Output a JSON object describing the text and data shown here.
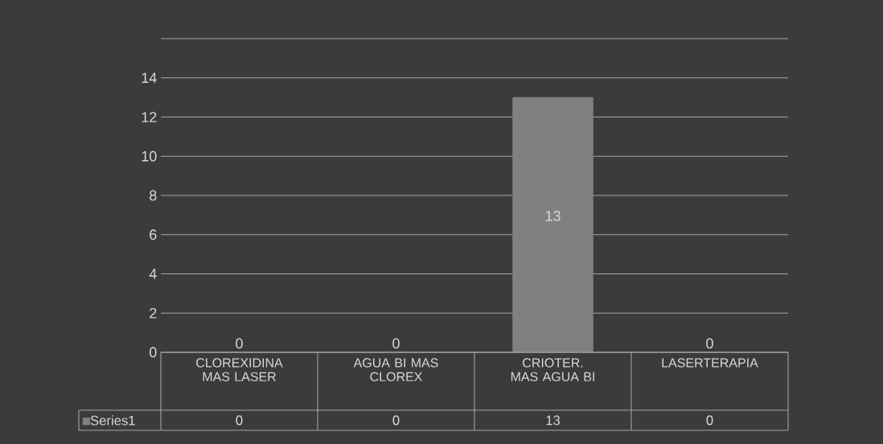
{
  "chart_data": {
    "type": "bar",
    "categories": [
      "CLOREXIDINA MAS LASER",
      "AGUA BI MAS CLOREX",
      "CRIOTER. MAS AGUA BI",
      "LASERTERAPIA"
    ],
    "series": [
      {
        "name": "Series1",
        "color": "#808080",
        "values": [
          0,
          0,
          13,
          0
        ]
      }
    ],
    "ylim": [
      0,
      16
    ],
    "yticks": [
      0,
      2,
      4,
      6,
      8,
      10,
      12,
      14,
      {
        "value": 16,
        "label": null
      }
    ],
    "grid": "y",
    "data_labels": true,
    "legend": "bottom",
    "annotations": [
      "0",
      "0",
      "13",
      "0"
    ]
  }
}
